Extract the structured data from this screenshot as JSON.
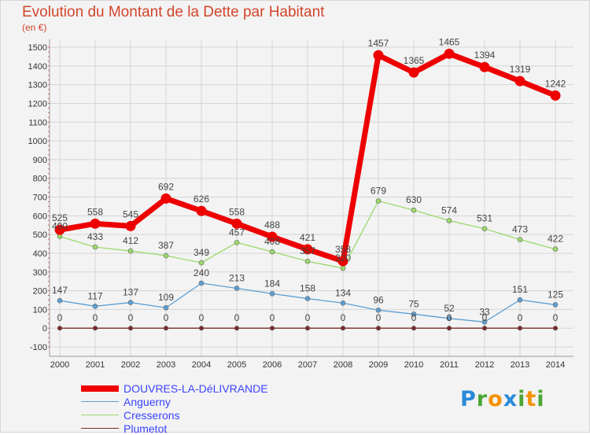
{
  "title": "Evolution du Montant de la Dette par Habitant",
  "subtitle": "(en €)",
  "logo": "Proxiti",
  "chart_data": {
    "type": "line",
    "title": "Evolution du Montant de la Dette par Habitant",
    "subtitle": "(en €)",
    "x": [
      "2000",
      "2001",
      "2002",
      "2003",
      "2004",
      "2005",
      "2006",
      "2007",
      "2008",
      "2009",
      "2010",
      "2011",
      "2012",
      "2013",
      "2014"
    ],
    "ylim": [
      -100,
      1500
    ],
    "yticks": [
      -100,
      0,
      100,
      200,
      300,
      400,
      500,
      600,
      700,
      800,
      900,
      1000,
      1100,
      1200,
      1300,
      1400,
      1500
    ],
    "grid": true,
    "legend_position": "bottom-left",
    "series": [
      {
        "name": "DOUVRES-LA-DéLIVRANDE",
        "color": "#ee0000",
        "values": [
          525,
          558,
          545,
          692,
          626,
          558,
          488,
          421,
          358,
          1457,
          1365,
          1465,
          1394,
          1319,
          1242
        ]
      },
      {
        "name": "Anguerny",
        "color": "#5d9fd3",
        "values": [
          147,
          117,
          137,
          109,
          240,
          213,
          184,
          158,
          134,
          96,
          75,
          52,
          33,
          151,
          125
        ]
      },
      {
        "name": "Cresserons",
        "color": "#9ad96a",
        "values": [
          490,
          433,
          412,
          387,
          349,
          457,
          408,
          357,
          320,
          679,
          630,
          574,
          531,
          473,
          422
        ]
      },
      {
        "name": "Plumetot",
        "color": "#7a2a2a",
        "values": [
          0,
          0,
          0,
          0,
          0,
          0,
          0,
          0,
          0,
          0,
          0,
          0,
          0,
          0,
          0
        ]
      }
    ]
  }
}
